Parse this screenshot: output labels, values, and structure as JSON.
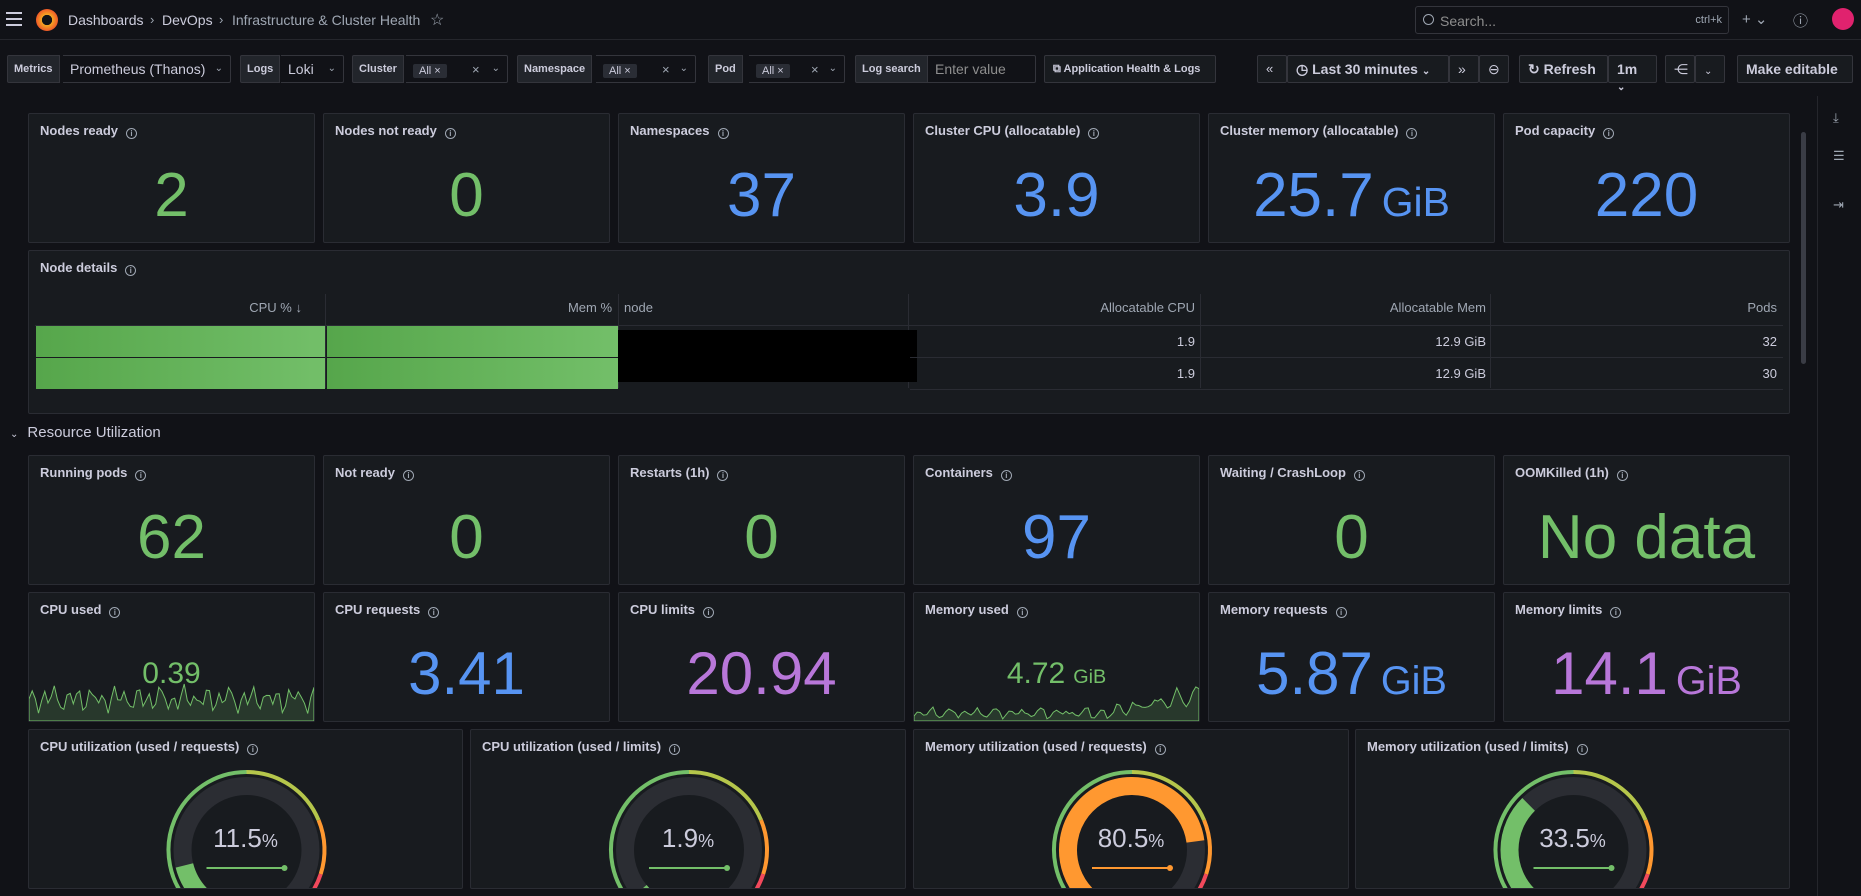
{
  "header": {
    "crumbs": [
      "Dashboards",
      "DevOps",
      "Infrastructure & Cluster Health"
    ],
    "search_placeholder": "Search...",
    "search_shortcut": "ctrl+k"
  },
  "variables": {
    "metrics_label": "Metrics",
    "metrics_value": "Prometheus (Thanos)",
    "logs_label": "Logs",
    "logs_value": "Loki",
    "cluster_label": "Cluster",
    "cluster_value": "All",
    "namespace_label": "Namespace",
    "namespace_value": "All",
    "pod_label": "Pod",
    "pod_value": "All",
    "logsearch_label": "Log search",
    "logsearch_placeholder": "Enter value",
    "app_link": "Application Health & Logs"
  },
  "toolbar": {
    "time_range": "Last 30 minutes",
    "refresh": "Refresh",
    "refresh_interval": "1m",
    "make_editable": "Make editable"
  },
  "stats_row1": [
    {
      "title": "Nodes ready",
      "value": "2",
      "unit": "",
      "color": "#73bf69"
    },
    {
      "title": "Nodes not ready",
      "value": "0",
      "unit": "",
      "color": "#73bf69"
    },
    {
      "title": "Namespaces",
      "value": "37",
      "unit": "",
      "color": "#5794f2"
    },
    {
      "title": "Cluster CPU (allocatable)",
      "value": "3.9",
      "unit": "",
      "color": "#5794f2"
    },
    {
      "title": "Cluster memory (allocatable)",
      "value": "25.7",
      "unit": "GiB",
      "color": "#5794f2"
    },
    {
      "title": "Pod capacity",
      "value": "220",
      "unit": "",
      "color": "#5794f2"
    }
  ],
  "node_details": {
    "title": "Node details",
    "columns": [
      "CPU %",
      "Mem %",
      "node",
      "Allocatable CPU",
      "Allocatable Mem",
      "Pods"
    ],
    "sort_indicator": "↓",
    "rows": [
      {
        "cpu": "1.9",
        "mem": "12.9 GiB",
        "pods": "32"
      },
      {
        "cpu": "1.9",
        "mem": "12.9 GiB",
        "pods": "30"
      }
    ]
  },
  "section_title": "Resource Utilization",
  "stats_row2": [
    {
      "title": "Running pods",
      "value": "62",
      "unit": "",
      "color": "#73bf69"
    },
    {
      "title": "Not ready",
      "value": "0",
      "unit": "",
      "color": "#73bf69"
    },
    {
      "title": "Restarts (1h)",
      "value": "0",
      "unit": "",
      "color": "#73bf69"
    },
    {
      "title": "Containers",
      "value": "97",
      "unit": "",
      "color": "#5794f2"
    },
    {
      "title": "Waiting / CrashLoop",
      "value": "0",
      "unit": "",
      "color": "#73bf69"
    },
    {
      "title": "OOMKilled (1h)",
      "value": "No data",
      "unit": "",
      "color": "#73bf69"
    }
  ],
  "stats_row3": [
    {
      "title": "CPU used",
      "value": "0.39",
      "unit": "",
      "color": "#73bf69",
      "sparkline": true
    },
    {
      "title": "CPU requests",
      "value": "3.41",
      "unit": "",
      "color": "#5794f2"
    },
    {
      "title": "CPU limits",
      "value": "20.94",
      "unit": "",
      "color": "#b877d9"
    },
    {
      "title": "Memory used",
      "value": "4.72",
      "unit": "GiB",
      "color": "#73bf69",
      "sparkline": true
    },
    {
      "title": "Memory requests",
      "value": "5.87",
      "unit": "GiB",
      "color": "#5794f2"
    },
    {
      "title": "Memory limits",
      "value": "14.1",
      "unit": "GiB",
      "color": "#b877d9"
    }
  ],
  "gauges": [
    {
      "title": "CPU utilization (used / requests)",
      "value": "11.5",
      "unit": "%",
      "fraction": 0.115
    },
    {
      "title": "CPU utilization (used / limits)",
      "value": "1.9",
      "unit": "%",
      "fraction": 0.019
    },
    {
      "title": "Memory utilization (used / requests)",
      "value": "80.5",
      "unit": "%",
      "fraction": 0.805
    },
    {
      "title": "Memory utilization (used / limits)",
      "value": "33.5",
      "unit": "%",
      "fraction": 0.335
    }
  ]
}
